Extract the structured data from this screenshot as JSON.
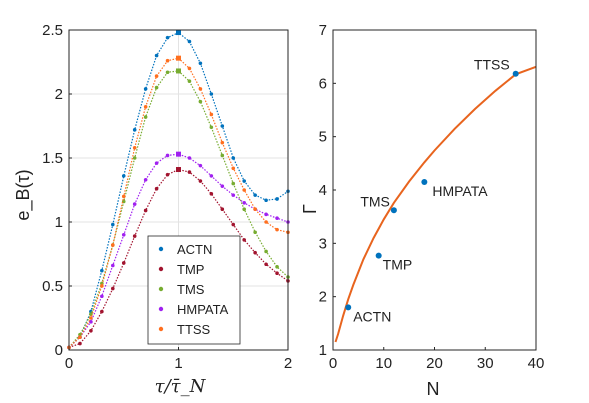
{
  "chart_data": [
    {
      "type": "line",
      "xlabel": "τ/τ̄_N",
      "ylabel": "e_B(τ)",
      "xlim": [
        0,
        2
      ],
      "ylim": [
        0,
        2.5
      ],
      "xticks": [
        "0",
        "1",
        "2"
      ],
      "yticks": [
        "0",
        "0.5",
        "1",
        "1.5",
        "2",
        "2.5"
      ],
      "grid": true,
      "legend_position": "bottom-center",
      "series": [
        {
          "name": "ACTN",
          "color": "#0072BD",
          "x": [
            0,
            0.1,
            0.2,
            0.3,
            0.4,
            0.5,
            0.6,
            0.7,
            0.8,
            0.9,
            1.0,
            1.1,
            1.2,
            1.3,
            1.4,
            1.5,
            1.6,
            1.7,
            1.8,
            1.9,
            2.0
          ],
          "y": [
            0.02,
            0.1,
            0.3,
            0.62,
            0.98,
            1.36,
            1.72,
            2.04,
            2.3,
            2.44,
            2.48,
            2.41,
            2.24,
            2.0,
            1.75,
            1.5,
            1.32,
            1.21,
            1.17,
            1.18,
            1.24
          ]
        },
        {
          "name": "TMP",
          "color": "#A2142F",
          "x": [
            0,
            0.1,
            0.2,
            0.3,
            0.4,
            0.5,
            0.6,
            0.7,
            0.8,
            0.9,
            1.0,
            1.1,
            1.2,
            1.3,
            1.4,
            1.5,
            1.6,
            1.7,
            1.8,
            1.9,
            2.0
          ],
          "y": [
            0.02,
            0.05,
            0.15,
            0.3,
            0.48,
            0.68,
            0.89,
            1.09,
            1.26,
            1.37,
            1.41,
            1.39,
            1.32,
            1.22,
            1.1,
            0.98,
            0.86,
            0.76,
            0.67,
            0.6,
            0.54
          ]
        },
        {
          "name": "TMS",
          "color": "#77AC30",
          "x": [
            0,
            0.1,
            0.2,
            0.3,
            0.4,
            0.5,
            0.6,
            0.7,
            0.8,
            0.9,
            1.0,
            1.1,
            1.2,
            1.3,
            1.4,
            1.5,
            1.6,
            1.7,
            1.8,
            1.9,
            2.0
          ],
          "y": [
            0.02,
            0.12,
            0.28,
            0.52,
            0.82,
            1.16,
            1.5,
            1.82,
            2.05,
            2.17,
            2.18,
            2.1,
            1.94,
            1.74,
            1.52,
            1.3,
            1.1,
            0.92,
            0.77,
            0.65,
            0.57
          ]
        },
        {
          "name": "HMPATA",
          "color": "#A020F0",
          "x": [
            0,
            0.1,
            0.2,
            0.3,
            0.4,
            0.5,
            0.6,
            0.7,
            0.8,
            0.9,
            1.0,
            1.1,
            1.2,
            1.3,
            1.4,
            1.5,
            1.6,
            1.7,
            1.8,
            1.9,
            2.0
          ],
          "y": [
            0.02,
            0.1,
            0.22,
            0.42,
            0.66,
            0.9,
            1.14,
            1.33,
            1.46,
            1.52,
            1.53,
            1.5,
            1.44,
            1.36,
            1.28,
            1.21,
            1.15,
            1.1,
            1.06,
            1.03,
            1.0
          ]
        },
        {
          "name": "TTSS",
          "color": "#FF6F1F",
          "x": [
            0,
            0.1,
            0.2,
            0.3,
            0.4,
            0.5,
            0.6,
            0.7,
            0.8,
            0.9,
            1.0,
            1.1,
            1.2,
            1.3,
            1.4,
            1.5,
            1.6,
            1.7,
            1.8,
            1.9,
            2.0
          ],
          "y": [
            0.02,
            0.1,
            0.25,
            0.5,
            0.82,
            1.2,
            1.58,
            1.9,
            2.14,
            2.26,
            2.28,
            2.2,
            2.04,
            1.84,
            1.62,
            1.42,
            1.25,
            1.1,
            1.0,
            0.94,
            0.92
          ]
        }
      ]
    },
    {
      "type": "scatter",
      "xlabel": "N",
      "ylabel": "Γ",
      "xlim": [
        0,
        40
      ],
      "ylim": [
        1,
        7
      ],
      "xticks": [
        "0",
        "10",
        "20",
        "30",
        "40"
      ],
      "yticks": [
        "1",
        "2",
        "3",
        "4",
        "5",
        "6",
        "7"
      ],
      "grid": false,
      "points": [
        {
          "label": "ACTN",
          "x": 3,
          "y": 1.8
        },
        {
          "label": "TMP",
          "x": 9,
          "y": 2.77
        },
        {
          "label": "TMS",
          "x": 12,
          "y": 3.62
        },
        {
          "label": "HMPATA",
          "x": 18,
          "y": 4.15
        },
        {
          "label": "TTSS",
          "x": 36,
          "y": 6.18
        }
      ],
      "point_color": "#0072BD",
      "fit_color": "#E8641E",
      "fit_curve": {
        "x": [
          0.5,
          1,
          2,
          3,
          4,
          6,
          8,
          10,
          12,
          15,
          18,
          20,
          24,
          28,
          32,
          36,
          40
        ],
        "y": [
          1.15,
          1.3,
          1.64,
          1.95,
          2.22,
          2.7,
          3.1,
          3.45,
          3.76,
          4.16,
          4.52,
          4.74,
          5.15,
          5.52,
          5.86,
          6.17,
          6.31
        ]
      }
    }
  ]
}
